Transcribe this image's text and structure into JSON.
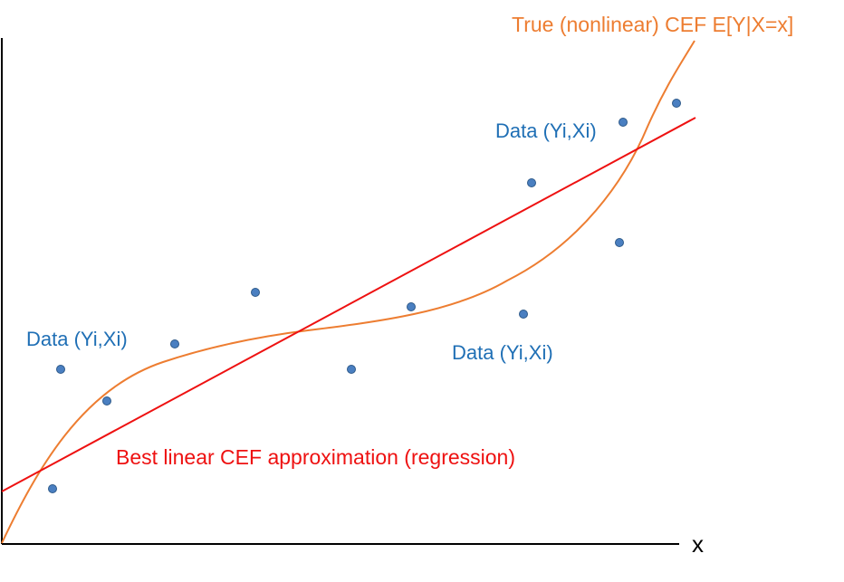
{
  "colors": {
    "axis": "#000000",
    "cef_curve": "#ed7d31",
    "regression_line": "#ee1111",
    "points_fill": "#4a7fc1",
    "points_stroke": "#2e5a8a",
    "data_label": "#1f6fb5"
  },
  "labels": {
    "cef_curve": "True (nonlinear) CEF E[Y|X=x]",
    "regression": "Best linear CEF approximation (regression)",
    "x_axis": "x",
    "data_1": "Data (Yi,Xi)",
    "data_2": "Data (Yi,Xi)",
    "data_3": "Data (Yi,Xi)"
  }
}
